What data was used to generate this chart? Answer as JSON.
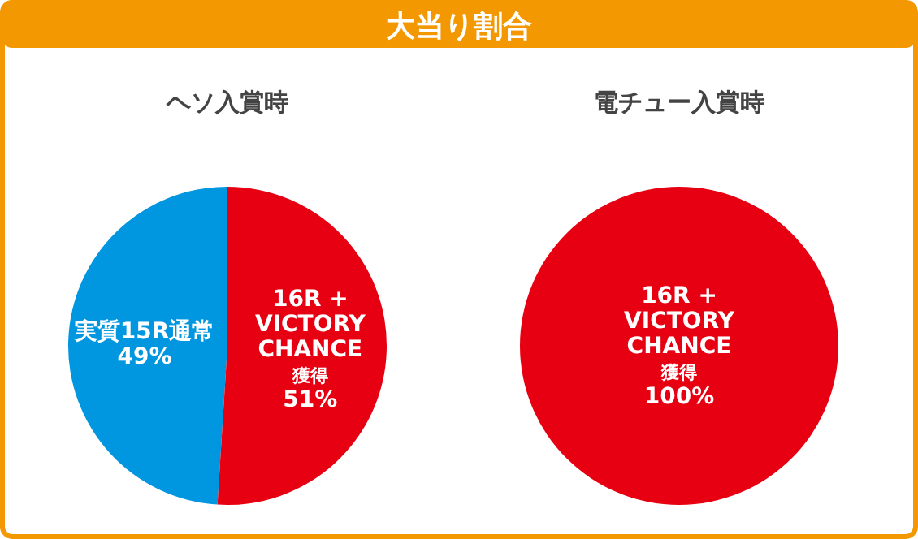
{
  "chart_data": [
    {
      "type": "pie",
      "title": "大当り割合",
      "subtitle": "ヘソ入賞時",
      "categories": [
        "実質15R通常",
        "16R +\nVICTORY\nCHANCE\n獲得"
      ],
      "values": [
        49,
        51
      ],
      "colors": [
        "#0096e0",
        "#e60012"
      ],
      "value_labels": [
        "49%",
        "51%"
      ]
    },
    {
      "type": "pie",
      "subtitle": "電チュー入賞時",
      "categories": [
        "16R +\nVICTORY\nCHANCE\n獲得"
      ],
      "values": [
        100
      ],
      "colors": [
        "#e60012"
      ],
      "value_labels": [
        "100%"
      ]
    }
  ]
}
